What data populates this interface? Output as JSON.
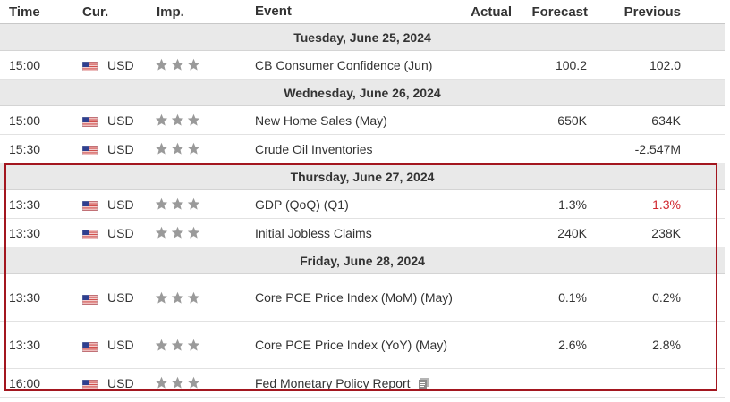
{
  "header": {
    "time": "Time",
    "currency": "Cur.",
    "importance": "Imp.",
    "event": "Event",
    "actual": "Actual",
    "forecast": "Forecast",
    "previous": "Previous"
  },
  "days": [
    {
      "label": "Tuesday, June 25, 2024",
      "events": [
        {
          "time": "15:00",
          "currency": "USD",
          "event": "CB Consumer Confidence (Jun)",
          "actual": "",
          "forecast": "100.2",
          "previous": "102.0",
          "stars": 3,
          "icon": "us-flag-icon"
        }
      ]
    },
    {
      "label": "Wednesday, June 26, 2024",
      "events": [
        {
          "time": "15:00",
          "currency": "USD",
          "event": "New Home Sales (May)",
          "actual": "",
          "forecast": "650K",
          "previous": "634K",
          "stars": 3,
          "icon": "us-flag-icon"
        },
        {
          "time": "15:30",
          "currency": "USD",
          "event": "Crude Oil Inventories",
          "actual": "",
          "forecast": "",
          "previous": "-2.547M",
          "stars": 3,
          "icon": "us-flag-icon"
        }
      ]
    },
    {
      "label": "Thursday, June 27, 2024",
      "events": [
        {
          "time": "13:30",
          "currency": "USD",
          "event": "GDP (QoQ) (Q1)",
          "actual": "",
          "forecast": "1.3%",
          "previous": "1.3%",
          "previous_color": "#d0262d",
          "stars": 3,
          "icon": "us-flag-icon"
        },
        {
          "time": "13:30",
          "currency": "USD",
          "event": "Initial Jobless Claims",
          "actual": "",
          "forecast": "240K",
          "previous": "238K",
          "stars": 3,
          "icon": "us-flag-icon"
        }
      ]
    },
    {
      "label": "Friday, June 28, 2024",
      "events": [
        {
          "time": "13:30",
          "currency": "USD",
          "event": "Core PCE Price Index (MoM) (May)",
          "actual": "",
          "forecast": "0.1%",
          "previous": "0.2%",
          "stars": 3,
          "icon": "us-flag-icon"
        },
        {
          "time": "13:30",
          "currency": "USD",
          "event": "Core PCE Price Index (YoY) (May)",
          "actual": "",
          "forecast": "2.6%",
          "previous": "2.8%",
          "stars": 3,
          "icon": "us-flag-icon"
        },
        {
          "time": "16:00",
          "currency": "USD",
          "event": "Fed Monetary Policy Report",
          "actual": "",
          "forecast": "",
          "previous": "",
          "stars": 3,
          "icon": "us-flag-icon",
          "doc_icon": "document-icon"
        }
      ]
    }
  ],
  "colors": {
    "day_header_bg": "#e9e9e9",
    "star": "#9a9a9a",
    "highlight_border": "#a3161f",
    "negative": "#d0262d"
  }
}
